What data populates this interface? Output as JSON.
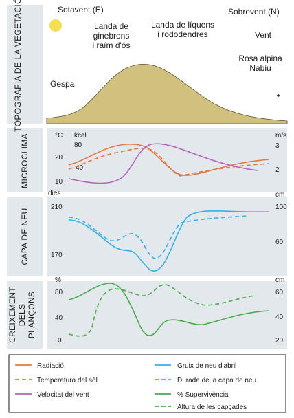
{
  "colors": {
    "panel_bg": "#e3e8ed",
    "mountain": "#d0c27e",
    "sun": "#f2e052",
    "radiacio": "#e07a45",
    "temperatura": "#e07a45",
    "vent": "#b465b8",
    "gruix_neu": "#33b1e8",
    "durada_neu": "#33b1e8",
    "supervivencia": "#4aab4a",
    "altura": "#4aab4a"
  },
  "topografia": {
    "section_label": "TOPOGRAFIA DE LA VEGETACIÓ",
    "sotavent": "Sotavent (E)",
    "sobrevent": "Sobrevent (N)",
    "landa_ginebrons": [
      "Landa de",
      "ginebrons",
      "i raïm d'ós"
    ],
    "landa_liquens": [
      "Landa de líquens",
      "i rododendres"
    ],
    "vent": "Vent",
    "rosa_alpina": [
      "Rosa alpina",
      "Nabiu"
    ],
    "gespa": "Gespa",
    "icons": [
      "sun-icon"
    ]
  },
  "microclima": {
    "section_label": "MICROCLIMA",
    "left_unit_temp": "°C",
    "left_unit_kcal": "kcal",
    "left_ticks_temp": [
      "20",
      "10"
    ],
    "left_ticks_kcal": [
      "80",
      "40"
    ],
    "right_unit": "m/s",
    "right_ticks": [
      "3",
      "2"
    ]
  },
  "capa_neu": {
    "section_label": "CAPA DE NEU",
    "left_unit": "dies",
    "left_ticks": [
      "210",
      "170"
    ],
    "right_unit": "cm",
    "right_ticks": [
      "100",
      "60"
    ]
  },
  "creixement": {
    "section_label": [
      "CREIXEMENT",
      "DELS",
      "PLANÇONS"
    ],
    "left_unit": "%",
    "left_ticks": [
      "80",
      "40",
      "0"
    ],
    "right_unit": "cm",
    "right_ticks": [
      "60",
      "40",
      "20"
    ]
  },
  "legend": {
    "items": [
      {
        "label": "Radiació",
        "color_key": "radiacio",
        "dashed": false
      },
      {
        "label": "Temperatura del sòl",
        "color_key": "temperatura",
        "dashed": true
      },
      {
        "label": "Velocitat del vent",
        "color_key": "vent",
        "dashed": false
      },
      {
        "label": "Gruix de neu d'abril",
        "color_key": "gruix_neu",
        "dashed": false
      },
      {
        "label": "Durada de la capa de neu",
        "color_key": "durada_neu",
        "dashed": true
      },
      {
        "label": "% Supervivència",
        "color_key": "supervivencia",
        "dashed": false
      },
      {
        "label": "Altura de les capçades",
        "color_key": "altura",
        "dashed": true
      }
    ]
  }
}
